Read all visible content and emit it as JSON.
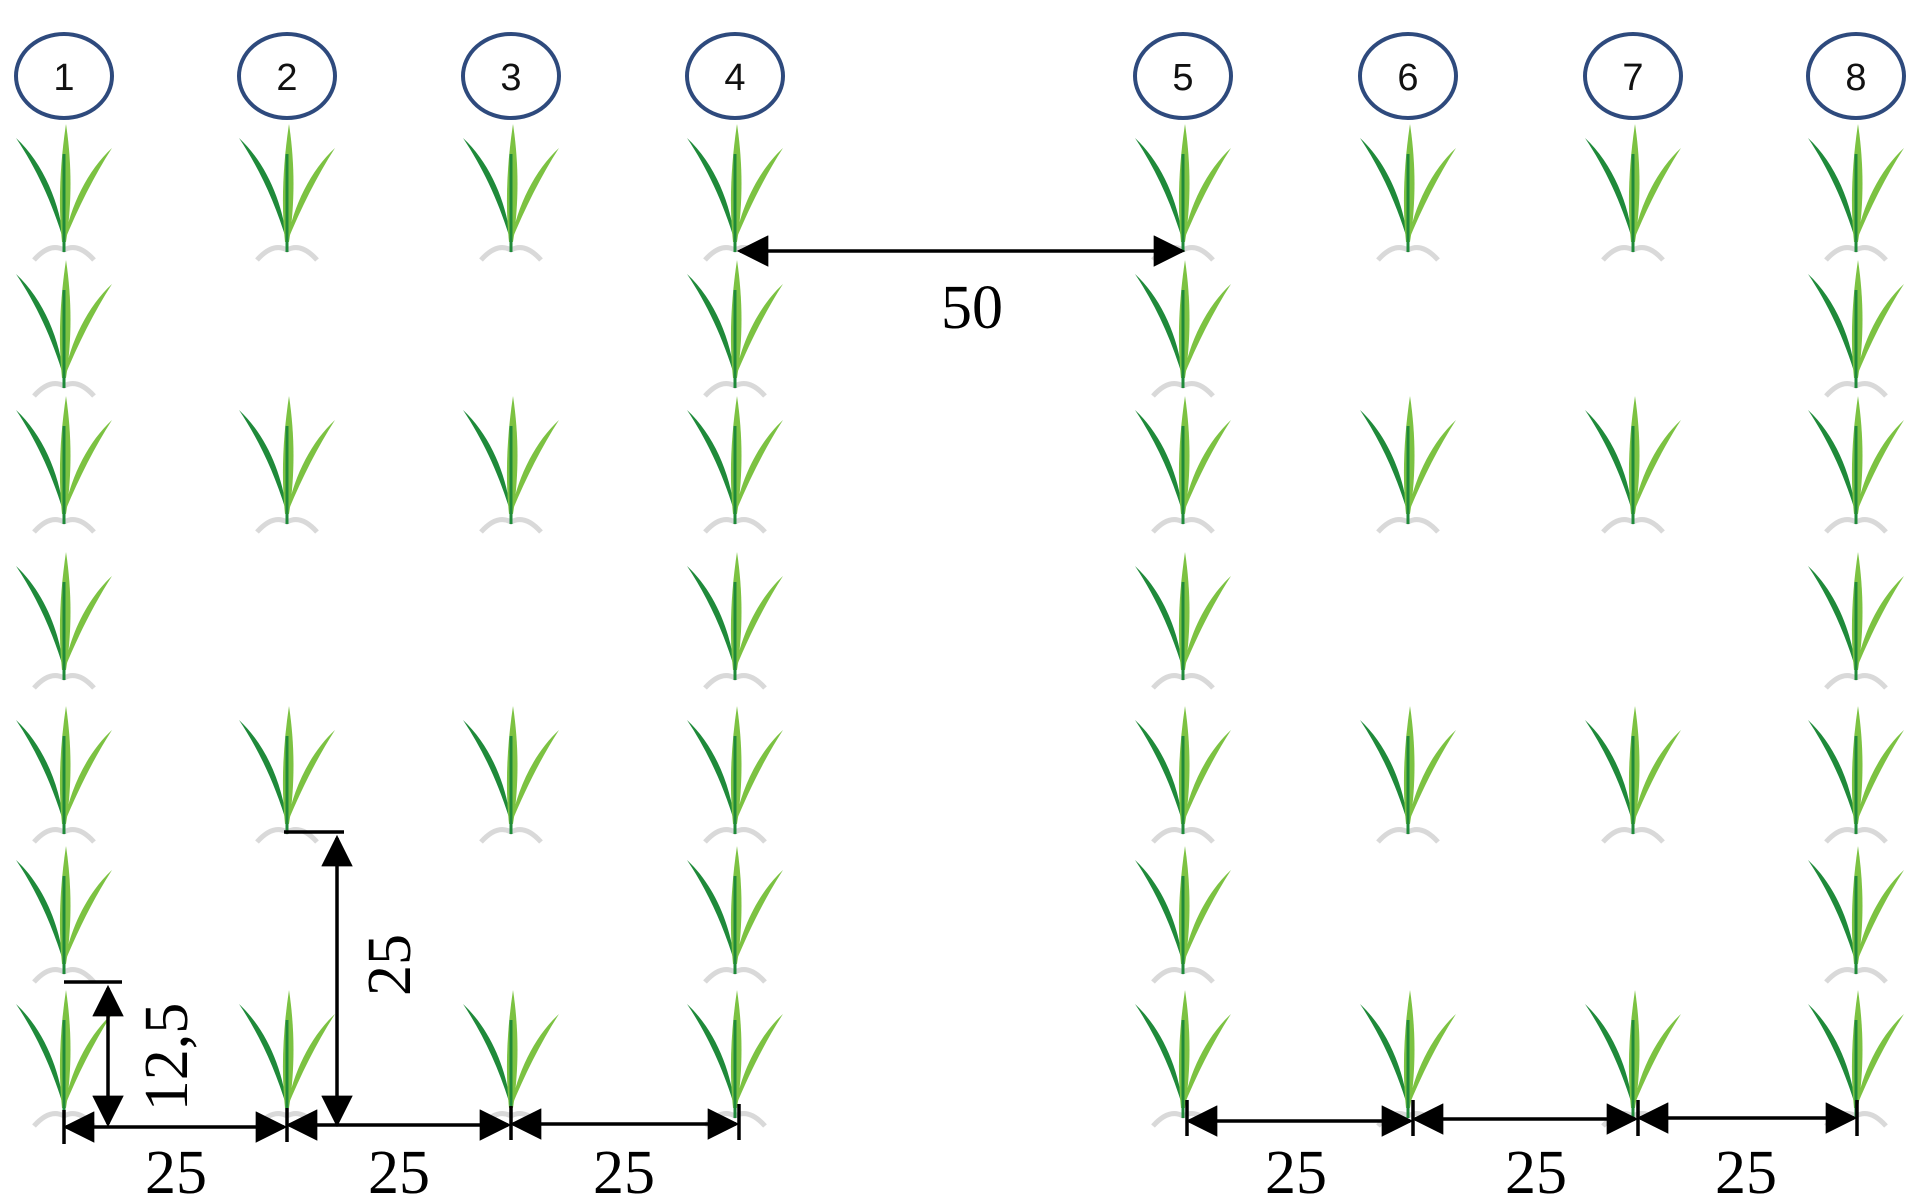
{
  "rows": [
    {
      "label": "1",
      "plants": [
        1,
        1,
        1,
        1,
        1,
        1,
        1
      ]
    },
    {
      "label": "2",
      "plants": [
        1,
        0,
        1,
        0,
        1,
        0,
        1
      ]
    },
    {
      "label": "3",
      "plants": [
        1,
        0,
        1,
        0,
        1,
        0,
        1
      ]
    },
    {
      "label": "4",
      "plants": [
        1,
        1,
        1,
        1,
        1,
        1,
        1
      ]
    },
    {
      "label": "5",
      "plants": [
        1,
        1,
        1,
        1,
        1,
        1,
        1
      ]
    },
    {
      "label": "6",
      "plants": [
        1,
        0,
        1,
        0,
        1,
        0,
        1
      ]
    },
    {
      "label": "7",
      "plants": [
        1,
        0,
        1,
        0,
        1,
        0,
        1
      ]
    },
    {
      "label": "8",
      "plants": [
        1,
        1,
        1,
        1,
        1,
        1,
        1
      ]
    }
  ],
  "dimensions": {
    "row_gap_between_blocks": "50",
    "in_row_short": "12,5",
    "in_row_long": "25",
    "left_row_spacings": [
      "25",
      "25",
      "25"
    ],
    "right_row_spacings": [
      "25",
      "25",
      "25"
    ]
  },
  "colors": {
    "circle_stroke": "#2e4a7d",
    "leaf_dark": "#1f8a3a",
    "leaf_light": "#7cc242",
    "soil": "#d9d9d9"
  },
  "icons": {
    "plant": "seedling-icon"
  }
}
